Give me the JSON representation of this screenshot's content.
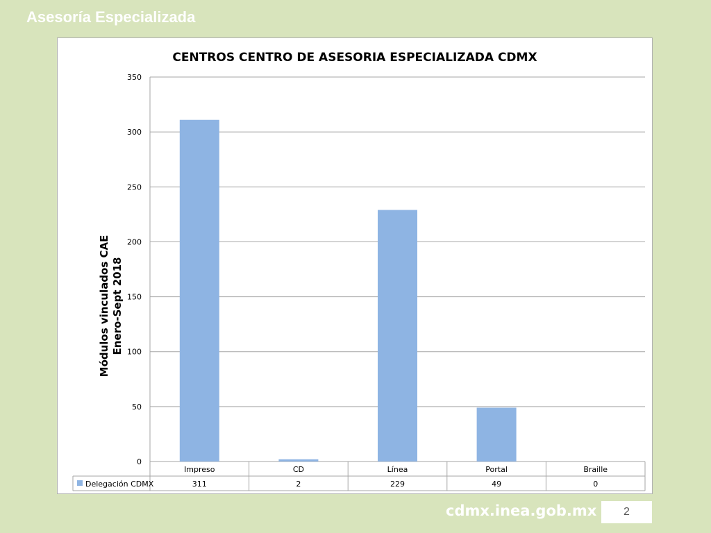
{
  "slide": {
    "title": "Asesoría Especializada",
    "footer_url": "cdmx.inea.gob.mx",
    "page_number": "2"
  },
  "colors": {
    "bar": "#8eb4e3",
    "background": "#d8e4bc"
  },
  "chart_data": {
    "type": "bar",
    "title": "CENTROS CENTRO DE ASESORIA ESPECIALIZADA CDMX",
    "ylabel": [
      "Módulos vinculados CAE",
      "Enero-Sept 2018"
    ],
    "xlabel": "",
    "categories": [
      "Impreso",
      "CD",
      "Línea",
      "Portal",
      "Braille"
    ],
    "series": [
      {
        "name": "Delegación CDMX",
        "values": [
          311,
          2,
          229,
          49,
          0
        ]
      }
    ],
    "ylim": [
      0,
      350
    ],
    "yticks": [
      0,
      50,
      100,
      150,
      200,
      250,
      300,
      350
    ],
    "grid": true,
    "data_table": true
  }
}
